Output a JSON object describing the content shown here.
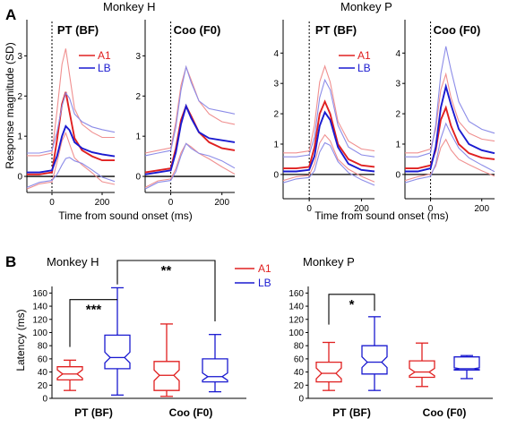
{
  "colors": {
    "a1": "#e02020",
    "lb": "#1a1ad0",
    "a1_light": "#f09090",
    "lb_light": "#8c8ce8"
  },
  "panel_a": {
    "letter": "A",
    "monkey_labels": [
      "Monkey H",
      "Monkey P"
    ],
    "xlabel": "Time from sound onset (ms)",
    "ylabel": "Response magnitude (SD)"
  },
  "panel_b": {
    "letter": "B",
    "monkey_labels": [
      "Monkey H",
      "Monkey P"
    ],
    "ylabel": "Latency (ms)",
    "legend": [
      "A1",
      "LB"
    ]
  },
  "chart_data": [
    {
      "type": "line",
      "panel": "A",
      "monkey": "Monkey H",
      "title": "PT (BF)",
      "xlim": [
        -100,
        250
      ],
      "ylim": [
        -0.4,
        3.9
      ],
      "xticks": [
        0,
        200
      ],
      "yticks": [
        0,
        1,
        2,
        3
      ],
      "legend": [
        "A1",
        "LB"
      ],
      "x": [
        -100,
        -50,
        0,
        20,
        40,
        55,
        70,
        90,
        120,
        160,
        200,
        250
      ],
      "series": [
        {
          "name": "A1",
          "values": [
            0.05,
            0.05,
            0.1,
            0.9,
            1.8,
            2.1,
            1.6,
            0.95,
            0.65,
            0.5,
            0.4,
            0.4
          ]
        },
        {
          "name": "LB",
          "values": [
            0.1,
            0.1,
            0.15,
            0.5,
            1.0,
            1.25,
            1.15,
            0.85,
            0.7,
            0.6,
            0.55,
            0.5
          ]
        }
      ]
    },
    {
      "type": "line",
      "panel": "A",
      "monkey": "Monkey H",
      "title": "Coo (F0)",
      "xlim": [
        -100,
        250
      ],
      "ylim": [
        -0.4,
        3.9
      ],
      "xticks": [
        0,
        200
      ],
      "yticks": [
        0,
        1,
        2,
        3
      ],
      "x": [
        -100,
        -50,
        0,
        20,
        40,
        60,
        80,
        110,
        150,
        200,
        250
      ],
      "series": [
        {
          "name": "A1",
          "values": [
            0.1,
            0.15,
            0.2,
            0.7,
            1.4,
            1.75,
            1.5,
            1.1,
            0.85,
            0.7,
            0.65
          ]
        },
        {
          "name": "LB",
          "values": [
            0.05,
            0.1,
            0.15,
            0.6,
            1.3,
            1.75,
            1.45,
            1.1,
            0.95,
            0.9,
            0.85
          ]
        }
      ]
    },
    {
      "type": "line",
      "panel": "A",
      "monkey": "Monkey P",
      "title": "PT (BF)",
      "xlim": [
        -100,
        250
      ],
      "ylim": [
        -0.8,
        5.1
      ],
      "xticks": [
        0,
        200
      ],
      "yticks": [
        0,
        1,
        2,
        3,
        4
      ],
      "legend": [
        "A1",
        "LB"
      ],
      "x": [
        -100,
        -50,
        0,
        20,
        40,
        60,
        80,
        110,
        150,
        200,
        250
      ],
      "series": [
        {
          "name": "A1",
          "values": [
            0.2,
            0.2,
            0.25,
            0.9,
            2.0,
            2.4,
            2.0,
            1.0,
            0.5,
            0.3,
            0.25
          ]
        },
        {
          "name": "LB",
          "values": [
            0.1,
            0.1,
            0.15,
            0.6,
            1.6,
            2.05,
            1.8,
            0.9,
            0.35,
            0.15,
            0.1
          ]
        }
      ]
    },
    {
      "type": "line",
      "panel": "A",
      "monkey": "Monkey P",
      "title": "Coo (F0)",
      "xlim": [
        -100,
        250
      ],
      "ylim": [
        -0.8,
        5.1
      ],
      "xticks": [
        0,
        200
      ],
      "yticks": [
        0,
        1,
        2,
        3,
        4
      ],
      "x": [
        -100,
        -50,
        0,
        20,
        40,
        60,
        80,
        110,
        150,
        200,
        250
      ],
      "series": [
        {
          "name": "A1",
          "values": [
            0.2,
            0.2,
            0.3,
            0.8,
            1.8,
            2.2,
            1.6,
            1.0,
            0.7,
            0.55,
            0.5
          ]
        },
        {
          "name": "LB",
          "values": [
            0.1,
            0.1,
            0.2,
            0.9,
            2.2,
            2.9,
            2.3,
            1.5,
            1.0,
            0.8,
            0.7
          ]
        }
      ]
    },
    {
      "type": "box",
      "panel": "B",
      "monkey": "Monkey H",
      "ylabel": "Latency (ms)",
      "ylim": [
        0,
        170
      ],
      "yticks": [
        0,
        20,
        40,
        60,
        80,
        100,
        120,
        140,
        160
      ],
      "categories": [
        "PT (BF)",
        "Coo (F0)"
      ],
      "legend": [
        "A1",
        "LB"
      ],
      "boxes": [
        {
          "category": "PT (BF)",
          "series": "A1",
          "min": 12,
          "q1": 28,
          "median": 37,
          "q3": 48,
          "max": 58
        },
        {
          "category": "PT (BF)",
          "series": "LB",
          "min": 5,
          "q1": 45,
          "median": 62,
          "q3": 96,
          "max": 168
        },
        {
          "category": "Coo (F0)",
          "series": "A1",
          "min": 3,
          "q1": 12,
          "median": 35,
          "q3": 56,
          "max": 113
        },
        {
          "category": "Coo (F0)",
          "series": "LB",
          "min": 10,
          "q1": 25,
          "median": 33,
          "q3": 60,
          "max": 97
        }
      ],
      "annotations": [
        {
          "text": "***",
          "between": [
            0,
            1
          ]
        },
        {
          "text": "**",
          "between": [
            1,
            3
          ]
        }
      ]
    },
    {
      "type": "box",
      "panel": "B",
      "monkey": "Monkey P",
      "ylim": [
        0,
        170
      ],
      "yticks": [
        0,
        20,
        40,
        60,
        80,
        100,
        120,
        140,
        160
      ],
      "categories": [
        "PT (BF)",
        "Coo (F0)"
      ],
      "boxes": [
        {
          "category": "PT (BF)",
          "series": "A1",
          "min": 12,
          "q1": 25,
          "median": 38,
          "q3": 55,
          "max": 85
        },
        {
          "category": "PT (BF)",
          "series": "LB",
          "min": 12,
          "q1": 37,
          "median": 55,
          "q3": 80,
          "max": 124
        },
        {
          "category": "Coo (F0)",
          "series": "A1",
          "min": 18,
          "q1": 32,
          "median": 40,
          "q3": 57,
          "max": 84
        },
        {
          "category": "Coo (F0)",
          "series": "LB",
          "min": 30,
          "q1": 43,
          "median": 45,
          "q3": 63,
          "max": 65
        }
      ],
      "annotations": [
        {
          "text": "*",
          "between": [
            0,
            1
          ]
        }
      ]
    }
  ]
}
